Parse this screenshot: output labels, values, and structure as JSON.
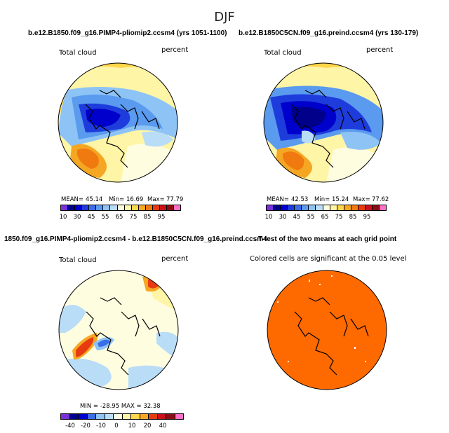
{
  "figure": {
    "title": "DJF"
  },
  "panels": [
    {
      "title": "b.e12.B1850.f09_g16.PIMP4-pliomip2.ccsm4 (yrs 1051-1100)",
      "left_label": "Total cloud",
      "right_label": "percent",
      "stats": {
        "mean_label": "MEAN=",
        "mean": "45.14",
        "min_label": "Min=",
        "min": "16.69",
        "max_label": "Max=",
        "max": "77.79"
      },
      "colorbar_ticks": [
        "10",
        "30",
        "45",
        "55",
        "65",
        "75",
        "85",
        "95"
      ]
    },
    {
      "title": "b.e12.B1850C5CN.f09_g16.preind.ccsm4 (yrs 130-179)",
      "left_label": "Total cloud",
      "right_label": "percent",
      "stats": {
        "mean_label": "MEAN=",
        "mean": "42.53",
        "min_label": "Min=",
        "min": "15.24",
        "max_label": "Max=",
        "max": "77.62"
      },
      "colorbar_ticks": [
        "10",
        "30",
        "45",
        "55",
        "65",
        "75",
        "85",
        "95"
      ]
    },
    {
      "title": "1850.f09_g16.PIMP4-pliomip2.ccsm4 - b.e12.B1850C5CN.f09_g16.preind.ccsm4",
      "left_label": "Total cloud",
      "right_label": "percent",
      "stats_text": "MIN = -28.95  MAX = 32.38",
      "colorbar_ticks": [
        "-40",
        "-20",
        "-10",
        "0",
        "10",
        "20",
        "40"
      ]
    },
    {
      "title": "T-test of the two means at each grid point",
      "note": "Colored cells are significant at the 0.05 level"
    }
  ],
  "colors": {
    "abs_scale": [
      "#7b2fd9",
      "#00008b",
      "#0000cd",
      "#1e3cdc",
      "#3a6ee8",
      "#5a9aef",
      "#8ec3f5",
      "#b9dcf7",
      "#fffde0",
      "#fff5a6",
      "#ffd54a",
      "#f5a623",
      "#f07a10",
      "#e83a10",
      "#c81018",
      "#8c0c14",
      "#ff6ec7"
    ],
    "diff_scale": [
      "#7b2fd9",
      "#00008b",
      "#0000cd",
      "#3a6ee8",
      "#8ec3f5",
      "#b9dcf7",
      "#fffde0",
      "#fff5a6",
      "#ffd54a",
      "#f5a623",
      "#e83a10",
      "#c81018",
      "#8c0c14",
      "#ff6ec7"
    ],
    "significant": "#ff6a00"
  }
}
